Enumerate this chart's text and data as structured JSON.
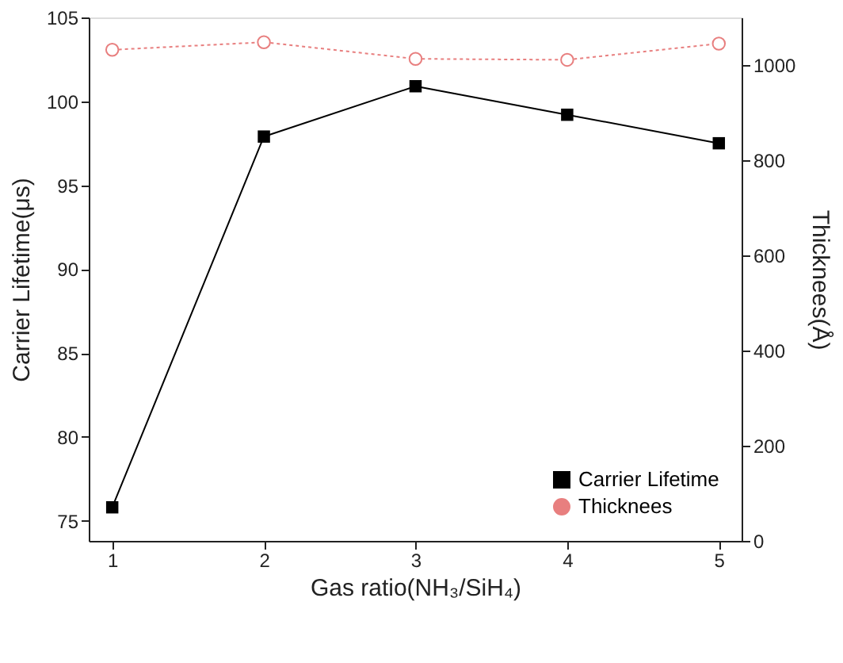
{
  "chart_data": {
    "type": "line",
    "xlabel": "Gas ratio(NH₃/SiH₄)",
    "ylabel": "Carrier Lifetime(μs)",
    "y2label": "Thicknees(Å)",
    "x": [
      1,
      2,
      3,
      4,
      5
    ],
    "xlim": [
      0.845,
      5.15
    ],
    "xticks": [
      1,
      2,
      3,
      4,
      5
    ],
    "ylim": [
      73.8,
      105
    ],
    "yticks": [
      75,
      80,
      85,
      90,
      95,
      100,
      105
    ],
    "y2lim": [
      0,
      1100
    ],
    "y2ticks": [
      0,
      200,
      400,
      600,
      800,
      1000
    ],
    "grid": false,
    "legend": "bottom right",
    "series": [
      {
        "name": "Carrier Lifetime",
        "color": "#000000",
        "marker": "square",
        "line_style": "solid",
        "values": [
          75.8,
          97.9,
          100.9,
          99.2,
          97.5
        ]
      },
      {
        "name": "Thicknees",
        "color": "#e87f7f",
        "marker": "circle",
        "line_style": "dotted",
        "axis": "y2",
        "values": [
          1032,
          1048,
          1013,
          1011,
          1045
        ]
      }
    ]
  }
}
